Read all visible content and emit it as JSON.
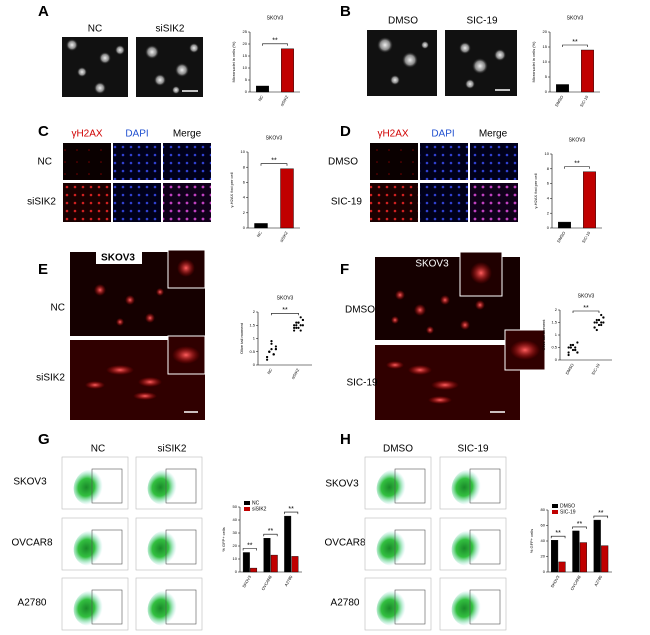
{
  "panel_letters": [
    "A",
    "B",
    "C",
    "D",
    "E",
    "F",
    "G",
    "H"
  ],
  "panel_a": {
    "labels": [
      "NC",
      "siSIK2"
    ]
  },
  "panel_b": {
    "labels": [
      "DMSO",
      "SIC-19"
    ]
  },
  "panel_c": {
    "channels": [
      "γH2AX",
      "DAPI",
      "Merge"
    ],
    "rows": [
      "NC",
      "siSIK2"
    ]
  },
  "panel_d": {
    "channels": [
      "γH2AX",
      "DAPI",
      "Merge"
    ],
    "rows": [
      "DMSO",
      "SIC-19"
    ]
  },
  "panel_e": {
    "title": "SKOV3",
    "rows": [
      "NC",
      "siSIK2"
    ]
  },
  "panel_f": {
    "title": "SKOV3",
    "rows": [
      "DMSO",
      "SIC-19"
    ]
  },
  "panel_g": {
    "columns": [
      "NC",
      "siSIK2"
    ],
    "rows": [
      "SKOV3",
      "OVCAR8",
      "A2780"
    ]
  },
  "panel_h": {
    "columns": [
      "DMSO",
      "SIC-19"
    ],
    "rows": [
      "SKOV3",
      "OVCAR8",
      "A2780"
    ]
  },
  "chart_data": [
    {
      "type": "bar",
      "title": "SKOV3",
      "y_label": "Micronuclei in cells (%)",
      "annotation": "**",
      "categories": [
        "NC",
        "siSIK2"
      ],
      "values": [
        2.5,
        18
      ],
      "colors": [
        "#000000",
        "#c00000"
      ],
      "ylim": [
        0,
        25
      ],
      "yticks": [
        0,
        5,
        10,
        15,
        20,
        25
      ]
    },
    {
      "type": "bar",
      "title": "SKOV3",
      "y_label": "Micronuclei in cells (%)",
      "annotation": "**",
      "categories": [
        "DMSO",
        "SIC-19"
      ],
      "values": [
        2.5,
        14
      ],
      "colors": [
        "#000000",
        "#c00000"
      ],
      "ylim": [
        0,
        20
      ],
      "yticks": [
        0,
        5,
        10,
        15,
        20
      ]
    },
    {
      "type": "bar",
      "title": "SKOV3",
      "y_label": "γ-H2AX foci per cell",
      "annotation": "**",
      "categories": [
        "NC",
        "siSIK2"
      ],
      "values": [
        0.6,
        7.8
      ],
      "colors": [
        "#000000",
        "#c00000"
      ],
      "ylim": [
        0,
        10
      ],
      "yticks": [
        0,
        2,
        4,
        6,
        8,
        10
      ]
    },
    {
      "type": "bar",
      "title": "SKOV3",
      "y_label": "γ-H2AX foci per cell",
      "annotation": "**",
      "categories": [
        "DMSO",
        "SIC-19"
      ],
      "values": [
        0.8,
        7.6
      ],
      "colors": [
        "#000000",
        "#c00000"
      ],
      "ylim": [
        0,
        10
      ],
      "yticks": [
        0,
        2,
        4,
        6,
        8,
        10
      ]
    },
    {
      "type": "strip",
      "title": "SKOV3",
      "y_label": "Olive tail moment",
      "annotation": "**",
      "categories": [
        "NC",
        "siSIK2"
      ],
      "values": [
        [
          0.3,
          0.5,
          0.6,
          0.4,
          0.7,
          0.2,
          0.5,
          0.8,
          0.4,
          0.6,
          0.3,
          0.5,
          0.9,
          0.4,
          0.6
        ],
        [
          1.4,
          1.5,
          1.6,
          1.3,
          1.7,
          1.5,
          1.4,
          1.6,
          1.8,
          1.5,
          1.3,
          1.6,
          1.4,
          1.5,
          1.7
        ]
      ],
      "colors": [
        "#000000",
        "#000000"
      ],
      "ylim": [
        0,
        2
      ],
      "yticks": [
        0,
        0.5,
        1,
        1.5,
        2
      ]
    },
    {
      "type": "strip",
      "title": "SKOV3",
      "y_label": "Olive tail moment",
      "annotation": "**",
      "categories": [
        "DMSO",
        "SIC-19"
      ],
      "values": [
        [
          0.3,
          0.5,
          0.6,
          0.4,
          0.7,
          0.2,
          0.5,
          0.6,
          0.4,
          0.3,
          0.5,
          0.6,
          0.4,
          0.5,
          0.3
        ],
        [
          1.3,
          1.5,
          1.6,
          1.4,
          1.7,
          1.5,
          1.2,
          1.6,
          1.8,
          1.5,
          1.3,
          1.6,
          1.4,
          1.5,
          1.7
        ]
      ],
      "colors": [
        "#000000",
        "#000000"
      ],
      "ylim": [
        0,
        2
      ],
      "yticks": [
        0,
        0.5,
        1,
        1.5,
        2
      ]
    },
    {
      "type": "grouped_bar",
      "y_label": "% GFP+ cells",
      "annotations": [
        "**",
        "**",
        "**"
      ],
      "categories": [
        "SKOV3",
        "OVCAR8",
        "A2780"
      ],
      "series": [
        {
          "name": "NC",
          "color": "#000000",
          "values": [
            15,
            26,
            43
          ]
        },
        {
          "name": "siSIK2",
          "color": "#c00000",
          "values": [
            3,
            13,
            12
          ]
        }
      ],
      "ylim": [
        0,
        50
      ],
      "yticks": [
        0,
        10,
        20,
        30,
        40,
        50
      ]
    },
    {
      "type": "grouped_bar",
      "y_label": "% GFP+ cells",
      "annotations": [
        "**",
        "**",
        "**"
      ],
      "categories": [
        "SKOV3",
        "OVCAR8",
        "A2780"
      ],
      "series": [
        {
          "name": "DMSO",
          "color": "#000000",
          "values": [
            41,
            53,
            67
          ]
        },
        {
          "name": "SIC-19",
          "color": "#c00000",
          "values": [
            13,
            38,
            34
          ]
        }
      ],
      "ylim": [
        0,
        80
      ],
      "yticks": [
        0,
        20,
        40,
        60,
        80
      ]
    }
  ]
}
